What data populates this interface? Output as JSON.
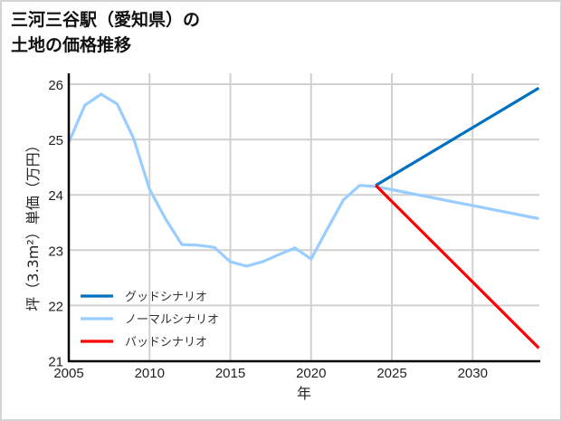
{
  "title": "三河三谷駅（愛知県）の\n土地の価格推移",
  "chart_data": {
    "type": "line",
    "title": "三河三谷駅（愛知県）の土地の価格推移",
    "xlabel": "年",
    "ylabel": "坪（3.3m²）単価（万円）",
    "xlim": [
      2005,
      2034.1
    ],
    "ylim": [
      21,
      26.2
    ],
    "xticks": [
      2005,
      2010,
      2015,
      2020,
      2025,
      2030
    ],
    "yticks": [
      21,
      22,
      23,
      24,
      25,
      26
    ],
    "grid": true,
    "legend_position": "lower left",
    "series": [
      {
        "name": "グッドシナリオ",
        "color": "#0070c0",
        "x": [
          2024,
          2034.1
        ],
        "values": [
          24.17,
          25.93
        ]
      },
      {
        "name": "ノーマルシナリオ",
        "color": "#99ccff",
        "x": [
          2005,
          2006,
          2007,
          2008,
          2009,
          2010,
          2011,
          2012,
          2013,
          2014,
          2015,
          2016,
          2017,
          2018,
          2019,
          2020,
          2021,
          2022,
          2023,
          2024,
          2034.1
        ],
        "values": [
          24.95,
          25.62,
          25.82,
          25.64,
          25.03,
          24.1,
          23.56,
          23.1,
          23.09,
          23.05,
          22.79,
          22.71,
          22.79,
          22.92,
          23.04,
          22.84,
          23.38,
          23.91,
          24.17,
          24.15,
          23.57
        ]
      },
      {
        "name": "バッドシナリオ",
        "color": "#ff0000",
        "x": [
          2024,
          2034.1
        ],
        "values": [
          24.17,
          21.23
        ]
      }
    ]
  },
  "axis": {
    "x_ticks": [
      "2005",
      "2010",
      "2015",
      "2020",
      "2025",
      "2030"
    ],
    "y_ticks": [
      "21",
      "22",
      "23",
      "24",
      "25",
      "26"
    ],
    "xlabel": "年",
    "ylabel": "坪（3.3m²）単価（万円）"
  },
  "legend": [
    {
      "label": "グッドシナリオ",
      "color": "#0070c0"
    },
    {
      "label": "ノーマルシナリオ",
      "color": "#99ccff"
    },
    {
      "label": "バッドシナリオ",
      "color": "#ff0000"
    }
  ]
}
